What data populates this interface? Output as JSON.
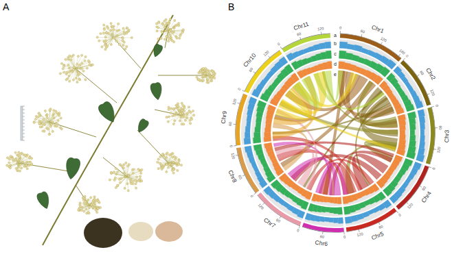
{
  "panel_labels": [
    "A",
    "B"
  ],
  "chart_data": {
    "type": "circos",
    "track_labels": [
      "a",
      "b",
      "c",
      "d",
      "e"
    ],
    "chromosomes": [
      {
        "name": "Chr1",
        "length": 190,
        "color": "#9b5e1a",
        "ticks": [
          0,
          60,
          120,
          180
        ]
      },
      {
        "name": "Chr2",
        "length": 150,
        "color": "#7a6410",
        "ticks": [
          0,
          60,
          120
        ]
      },
      {
        "name": "Chr3",
        "length": 165,
        "color": "#8c8a1e",
        "ticks": [
          0,
          60,
          120
        ]
      },
      {
        "name": "Chr4",
        "length": 150,
        "color": "#b0231e",
        "ticks": [
          0,
          60,
          120
        ]
      },
      {
        "name": "Chr5",
        "length": 155,
        "color": "#c82a22",
        "ticks": [
          0,
          60,
          120
        ]
      },
      {
        "name": "Chr6",
        "length": 120,
        "color": "#d02fb0",
        "ticks": [
          0,
          60
        ]
      },
      {
        "name": "Chr7",
        "length": 150,
        "color": "#e89aa8",
        "ticks": [
          0,
          60,
          120
        ]
      },
      {
        "name": "Chr8",
        "length": 140,
        "color": "#d79b4a",
        "ticks": [
          0,
          60,
          120
        ]
      },
      {
        "name": "Chr9",
        "length": 150,
        "color": "#e6a420",
        "ticks": [
          0,
          60,
          120
        ]
      },
      {
        "name": "Chr10",
        "length": 155,
        "color": "#ecd01a",
        "ticks": [
          0,
          60,
          120
        ]
      },
      {
        "name": "Chr11",
        "length": 145,
        "color": "#b5d63a",
        "ticks": [
          0,
          60,
          120
        ]
      }
    ],
    "tracks": [
      {
        "color": "#4a9fd8",
        "ylim": [
          0,
          100
        ],
        "values": [
          [
            72,
            55,
            60,
            48,
            52,
            58,
            66,
            75
          ],
          [
            70,
            58,
            50,
            45,
            47,
            55,
            62,
            74
          ],
          [
            68,
            60,
            52,
            44,
            50,
            57,
            65,
            78
          ],
          [
            74,
            62,
            55,
            46,
            49,
            60,
            68,
            72
          ],
          [
            70,
            56,
            48,
            42,
            50,
            58,
            63,
            71
          ],
          [
            66,
            57,
            50,
            46,
            53,
            60,
            64,
            70
          ],
          [
            73,
            60,
            54,
            47,
            51,
            59,
            67,
            76
          ],
          [
            69,
            58,
            51,
            45,
            48,
            56,
            62,
            73
          ],
          [
            71,
            59,
            53,
            44,
            49,
            57,
            66,
            74
          ],
          [
            75,
            61,
            55,
            48,
            52,
            60,
            68,
            77
          ],
          [
            72,
            57,
            50,
            46,
            50,
            58,
            64,
            70
          ]
        ]
      },
      {
        "color": "#35b05a",
        "ylim": [
          0,
          100
        ],
        "values": [
          [
            85,
            70,
            62,
            55,
            60,
            68,
            78,
            88
          ],
          [
            82,
            72,
            60,
            54,
            58,
            66,
            76,
            86
          ],
          [
            84,
            69,
            63,
            52,
            61,
            70,
            79,
            90
          ],
          [
            86,
            73,
            64,
            56,
            59,
            67,
            77,
            85
          ],
          [
            80,
            68,
            58,
            50,
            57,
            65,
            74,
            84
          ],
          [
            78,
            70,
            61,
            55,
            62,
            69,
            75,
            83
          ],
          [
            85,
            71,
            62,
            54,
            60,
            68,
            78,
            87
          ],
          [
            83,
            69,
            60,
            53,
            58,
            66,
            76,
            86
          ],
          [
            84,
            72,
            63,
            55,
            59,
            67,
            77,
            88
          ],
          [
            87,
            74,
            65,
            57,
            61,
            70,
            80,
            89
          ],
          [
            82,
            70,
            61,
            54,
            60,
            68,
            76,
            85
          ]
        ]
      },
      {
        "color": "#f08a3c",
        "ylim": [
          0,
          100
        ],
        "values": [
          [
            80,
            72,
            66,
            60,
            63,
            70,
            76,
            84
          ],
          [
            78,
            70,
            64,
            58,
            62,
            68,
            74,
            82
          ],
          [
            81,
            73,
            65,
            59,
            64,
            71,
            77,
            85
          ],
          [
            79,
            71,
            66,
            61,
            63,
            69,
            75,
            83
          ],
          [
            77,
            69,
            62,
            56,
            60,
            67,
            73,
            81
          ],
          [
            76,
            70,
            64,
            59,
            63,
            68,
            72,
            80
          ],
          [
            80,
            72,
            65,
            60,
            62,
            70,
            76,
            84
          ],
          [
            78,
            70,
            63,
            57,
            61,
            68,
            74,
            82
          ],
          [
            79,
            72,
            66,
            60,
            64,
            70,
            75,
            83
          ],
          [
            82,
            74,
            67,
            61,
            65,
            72,
            78,
            86
          ],
          [
            78,
            71,
            64,
            58,
            62,
            69,
            74,
            81
          ]
        ]
      }
    ],
    "links": [
      {
        "source": [
          "Chr1",
          0,
          30
        ],
        "target": [
          "Chr2",
          100,
          140
        ]
      },
      {
        "source": [
          "Chr1",
          40,
          70
        ],
        "target": [
          "Chr3",
          20,
          50
        ]
      },
      {
        "source": [
          "Chr1",
          100,
          140
        ],
        "target": [
          "Chr10",
          60,
          90
        ]
      },
      {
        "source": [
          "Chr1",
          150,
          185
        ],
        "target": [
          "Chr8",
          20,
          40
        ]
      },
      {
        "source": [
          "Chr1",
          20,
          40
        ],
        "target": [
          "Chr6",
          60,
          80
        ]
      },
      {
        "source": [
          "Chr1",
          80,
          100
        ],
        "target": [
          "Chr9",
          100,
          120
        ]
      },
      {
        "source": [
          "Chr2",
          0,
          40
        ],
        "target": [
          "Chr3",
          100,
          150
        ]
      },
      {
        "source": [
          "Chr2",
          50,
          90
        ],
        "target": [
          "Chr3",
          60,
          90
        ]
      },
      {
        "source": [
          "Chr2",
          20,
          30
        ],
        "target": [
          "Chr7",
          40,
          50
        ]
      },
      {
        "source": [
          "Chr2",
          60,
          70
        ],
        "target": [
          "Chr5",
          20,
          30
        ]
      },
      {
        "source": [
          "Chr2",
          110,
          130
        ],
        "target": [
          "Chr3",
          10,
          30
        ]
      },
      {
        "source": [
          "Chr2",
          90,
          100
        ],
        "target": [
          "Chr9",
          30,
          40
        ]
      },
      {
        "source": [
          "Chr3",
          120,
          160
        ],
        "target": [
          "Chr4",
          10,
          40
        ]
      },
      {
        "source": [
          "Chr3",
          0,
          20
        ],
        "target": [
          "Chr1",
          150,
          170
        ]
      },
      {
        "source": [
          "Chr3",
          60,
          80
        ],
        "target": [
          "Chr10",
          10,
          30
        ]
      },
      {
        "source": [
          "Chr3",
          130,
          150
        ],
        "target": [
          "Chr5",
          100,
          130
        ]
      },
      {
        "source": [
          "Chr3",
          30,
          45
        ],
        "target": [
          "Chr11",
          100,
          110
        ]
      },
      {
        "source": [
          "Chr4",
          60,
          100
        ],
        "target": [
          "Chr5",
          30,
          70
        ]
      },
      {
        "source": [
          "Chr4",
          110,
          140
        ],
        "target": [
          "Chr7",
          90,
          120
        ]
      },
      {
        "source": [
          "Chr4",
          20,
          40
        ],
        "target": [
          "Chr6",
          30,
          50
        ]
      },
      {
        "source": [
          "Chr4",
          0,
          15
        ],
        "target": [
          "Chr8",
          100,
          115
        ]
      },
      {
        "source": [
          "Chr5",
          90,
          130
        ],
        "target": [
          "Chr6",
          60,
          100
        ]
      },
      {
        "source": [
          "Chr5",
          0,
          20
        ],
        "target": [
          "Chr7",
          10,
          30
        ]
      },
      {
        "source": [
          "Chr5",
          130,
          150
        ],
        "target": [
          "Chr8",
          50,
          80
        ]
      },
      {
        "source": [
          "Chr5",
          60,
          80
        ],
        "target": [
          "Chr9",
          0,
          20
        ]
      },
      {
        "source": [
          "Chr6",
          0,
          30
        ],
        "target": [
          "Chr7",
          100,
          140
        ]
      },
      {
        "source": [
          "Chr6",
          90,
          115
        ],
        "target": [
          "Chr5",
          130,
          150
        ]
      },
      {
        "source": [
          "Chr6",
          40,
          55
        ],
        "target": [
          "Chr8",
          120,
          135
        ]
      },
      {
        "source": [
          "Chr7",
          50,
          80
        ],
        "target": [
          "Chr8",
          60,
          100
        ]
      },
      {
        "source": [
          "Chr7",
          20,
          35
        ],
        "target": [
          "Chr9",
          130,
          145
        ]
      },
      {
        "source": [
          "Chr8",
          0,
          20
        ],
        "target": [
          "Chr9",
          60,
          80
        ]
      },
      {
        "source": [
          "Chr9",
          80,
          110
        ],
        "target": [
          "Chr10",
          100,
          140
        ]
      },
      {
        "source": [
          "Chr9",
          10,
          40
        ],
        "target": [
          "Chr11",
          10,
          40
        ]
      },
      {
        "source": [
          "Chr10",
          0,
          40
        ],
        "target": [
          "Chr11",
          60,
          110
        ]
      },
      {
        "source": [
          "Chr10",
          60,
          100
        ],
        "target": [
          "Chr9",
          120,
          150
        ]
      },
      {
        "source": [
          "Chr10",
          120,
          150
        ],
        "target": [
          "Chr1",
          60,
          90
        ]
      },
      {
        "source": [
          "Chr10",
          20,
          35
        ],
        "target": [
          "Chr3",
          140,
          155
        ]
      },
      {
        "source": [
          "Chr11",
          0,
          40
        ],
        "target": [
          "Chr10",
          110,
          150
        ]
      },
      {
        "source": [
          "Chr11",
          100,
          140
        ],
        "target": [
          "Chr1",
          0,
          20
        ]
      },
      {
        "source": [
          "Chr11",
          60,
          80
        ],
        "target": [
          "Chr2",
          30,
          45
        ]
      }
    ]
  }
}
